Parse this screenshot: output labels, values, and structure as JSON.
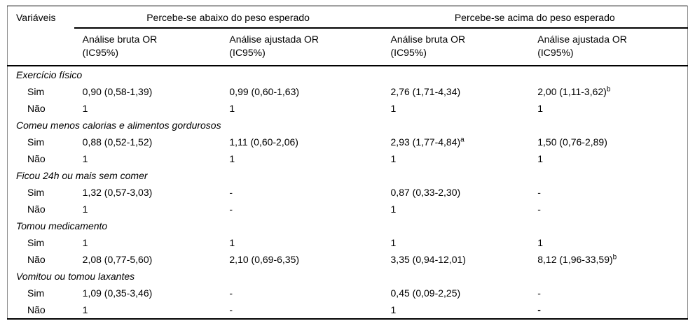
{
  "table": {
    "corner_header": "Variáveis",
    "group_headers": [
      "Percebe-se abaixo do peso esperado",
      "Percebe-se acima do peso esperado"
    ],
    "sub_headers": [
      {
        "line1": "Análise bruta OR",
        "line2": "(IC95%)"
      },
      {
        "line1": "Análise ajustada OR",
        "line2": "(IC95%)"
      },
      {
        "line1": "Análise bruta OR",
        "line2": "(IC95%)"
      },
      {
        "line1": "Análise ajustada OR",
        "line2": "(IC95%)"
      }
    ],
    "groups": [
      {
        "label": "Exercício físico",
        "rows": [
          {
            "label": "Sim",
            "cells": [
              {
                "text": "0,90 (0,58-1,39)"
              },
              {
                "text": "0,99 (0,60-1,63)"
              },
              {
                "text": "2,76 (1,71-4,34)"
              },
              {
                "text": "2,00 (1,11-3,62)",
                "sup": "b"
              }
            ]
          },
          {
            "label": "Não",
            "cells": [
              {
                "text": "1"
              },
              {
                "text": "1"
              },
              {
                "text": "1"
              },
              {
                "text": "1"
              }
            ]
          }
        ]
      },
      {
        "label": "Comeu menos calorias e alimentos gordurosos",
        "rows": [
          {
            "label": "Sim",
            "cells": [
              {
                "text": "0,88 (0,52-1,52)"
              },
              {
                "text": "1,11 (0,60-2,06)"
              },
              {
                "text": "2,93 (1,77-4,84)",
                "sup": "a"
              },
              {
                "text": "1,50 (0,76-2,89)"
              }
            ]
          },
          {
            "label": "Não",
            "cells": [
              {
                "text": "1"
              },
              {
                "text": "1"
              },
              {
                "text": "1"
              },
              {
                "text": "1"
              }
            ]
          }
        ]
      },
      {
        "label": "Ficou 24h ou mais sem comer",
        "rows": [
          {
            "label": "Sim",
            "cells": [
              {
                "text": "1,32 (0,57-3,03)"
              },
              {
                "text": "-"
              },
              {
                "text": "0,87 (0,33-2,30)"
              },
              {
                "text": "-"
              }
            ]
          },
          {
            "label": "Não",
            "cells": [
              {
                "text": "1"
              },
              {
                "text": "-"
              },
              {
                "text": "1"
              },
              {
                "text": "-"
              }
            ]
          }
        ]
      },
      {
        "label": "Tomou medicamento",
        "rows": [
          {
            "label": "Sim",
            "cells": [
              {
                "text": "1"
              },
              {
                "text": "1"
              },
              {
                "text": "1"
              },
              {
                "text": "1"
              }
            ]
          },
          {
            "label": "Não",
            "cells": [
              {
                "text": "2,08 (0,77-5,60)"
              },
              {
                "text": "2,10 (0,69-6,35)"
              },
              {
                "text": "3,35 (0,94-12,01)"
              },
              {
                "text": "8,12 (1,96-33,59)",
                "sup": "b"
              }
            ]
          }
        ]
      },
      {
        "label": "Vomitou ou tomou laxantes",
        "rows": [
          {
            "label": "Sim",
            "cells": [
              {
                "text": "1,09 (0,35-3,46)"
              },
              {
                "text": "-"
              },
              {
                "text": "0,45 (0,09-2,25)"
              },
              {
                "text": "-"
              }
            ]
          },
          {
            "label": "Não",
            "cells": [
              {
                "text": "1"
              },
              {
                "text": "-"
              },
              {
                "text": "1"
              },
              {
                "text": "-",
                "bold": true
              }
            ]
          }
        ]
      }
    ]
  }
}
